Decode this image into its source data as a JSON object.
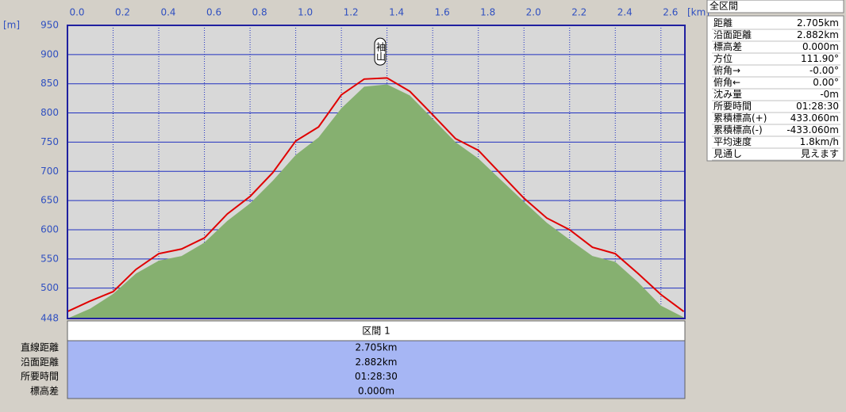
{
  "chart_data": {
    "type": "area-line",
    "x_label": "[km]",
    "y_label": "[m]",
    "annotation": {
      "text": "袖山",
      "x": 1.37,
      "y": 905
    },
    "x": [
      0,
      0.1,
      0.2,
      0.3,
      0.4,
      0.5,
      0.6,
      0.7,
      0.8,
      0.9,
      1.0,
      1.1,
      1.2,
      1.3,
      1.4,
      1.5,
      1.6,
      1.7,
      1.8,
      1.9,
      2.0,
      2.1,
      2.2,
      2.3,
      2.4,
      2.5,
      2.6,
      2.7
    ],
    "series": [
      {
        "color": "#e00000",
        "values": [
          460,
          478,
          494,
          532,
          559,
          567,
          586,
          627,
          657,
          698,
          752,
          776,
          831,
          858,
          860,
          837,
          797,
          756,
          736,
          695,
          654,
          620,
          600,
          570,
          559,
          525,
          489,
          460
        ]
      },
      {
        "color": "#86b070",
        "values": [
          448,
          465,
          490,
          525,
          547,
          555,
          578,
          615,
          645,
          684,
          728,
          758,
          808,
          845,
          849,
          830,
          790,
          750,
          722,
          685,
          648,
          612,
          583,
          555,
          545,
          510,
          470,
          450
        ]
      }
    ],
    "xlim": [
      0,
      2.705
    ],
    "ylim": [
      448,
      950
    ],
    "xticks": [
      {
        "value": 0,
        "label": "0.0"
      },
      0.2,
      0.4,
      0.6,
      0.8,
      {
        "value": 1,
        "label": "1.0"
      },
      1.2,
      1.4,
      1.6,
      1.8,
      {
        "value": 2,
        "label": "2.0"
      },
      2.2,
      2.4,
      2.6
    ],
    "yticks": [
      448,
      500,
      550,
      600,
      650,
      700,
      750,
      800,
      850,
      900,
      950
    ],
    "grid": true
  },
  "summary": {
    "title": "全区間",
    "rows": [
      [
        "距離",
        "2.705km"
      ],
      [
        "沿面距離",
        "2.882km"
      ],
      [
        "標高差",
        "0.000m"
      ],
      [
        "方位",
        "111.90°"
      ],
      [
        "俯角→",
        "-0.00°"
      ],
      [
        "俯角←",
        "0.00°"
      ],
      [
        "沈み量",
        "-0m"
      ],
      [
        "所要時間",
        "01:28:30"
      ],
      [
        "累積標高(+)",
        "433.060m"
      ],
      [
        "累積標高(-)",
        "-433.060m"
      ],
      [
        "平均速度",
        "1.8km/h"
      ],
      [
        "見通し",
        "見えます"
      ]
    ]
  },
  "section_table": {
    "header": "区間 1",
    "rows": [
      [
        "直線距離",
        "2.705km"
      ],
      [
        "沿面距離",
        "2.882km"
      ],
      [
        "所要時間",
        "01:28:30"
      ],
      [
        "標高差",
        "0.000m"
      ]
    ]
  }
}
